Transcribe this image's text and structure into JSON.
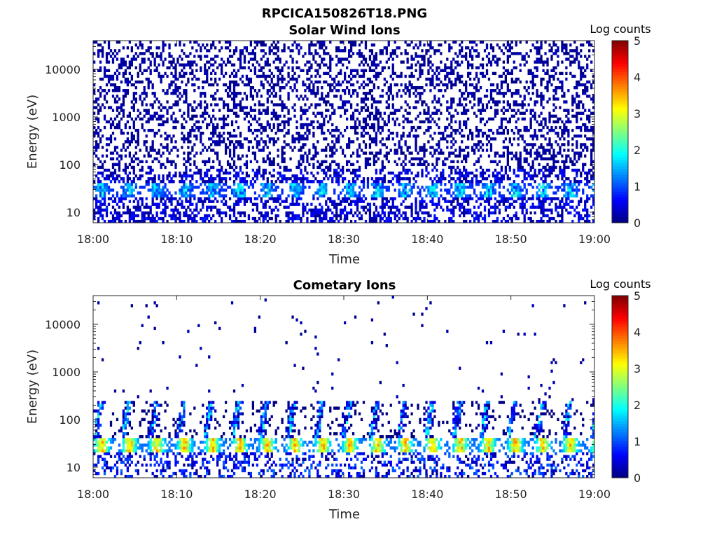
{
  "figure": {
    "title": "RPCICA150826T18.PNG"
  },
  "chart_data": [
    {
      "type": "heatmap",
      "title": "Solar Wind Ions",
      "xlabel": "Time",
      "ylabel": "Energy (eV)",
      "x_ticks": [
        "18:00",
        "18:10",
        "18:20",
        "18:30",
        "18:40",
        "18:50",
        "19:00"
      ],
      "xlim": [
        "18:00",
        "19:00"
      ],
      "y_scale": "log",
      "y_ticks": [
        10,
        100,
        1000,
        10000
      ],
      "y_tick_labels": [
        "10",
        "100",
        "1000",
        "10000"
      ],
      "ylim": [
        6,
        40000
      ],
      "colorbar": {
        "label": "Log counts",
        "range": [
          0,
          5
        ],
        "ticks": [
          "0",
          "1",
          "2",
          "3",
          "4",
          "5"
        ],
        "colormap": "jet"
      },
      "peak_bands": [
        {
          "energy_range_eV": [
            20,
            40
          ],
          "peak_log_counts": 2.3,
          "repeat_period_min": 3.3
        },
        {
          "energy_range_eV": [
            6,
            80
          ],
          "peak_log_counts": 0.8
        },
        {
          "energy_range_eV": [
            80,
            40000
          ],
          "peak_log_counts": 0.3,
          "note": "sparse background"
        }
      ]
    },
    {
      "type": "heatmap",
      "title": "Cometary Ions",
      "xlabel": "Time",
      "ylabel": "Energy (eV)",
      "x_ticks": [
        "18:00",
        "18:10",
        "18:20",
        "18:30",
        "18:40",
        "18:50",
        "19:00"
      ],
      "xlim": [
        "18:00",
        "19:00"
      ],
      "y_scale": "log",
      "y_ticks": [
        10,
        100,
        1000,
        10000
      ],
      "y_tick_labels": [
        "10",
        "100",
        "1000",
        "10000"
      ],
      "ylim": [
        6,
        40000
      ],
      "colorbar": {
        "label": "Log counts",
        "range": [
          0,
          5
        ],
        "ticks": [
          "0",
          "1",
          "2",
          "3",
          "4",
          "5"
        ],
        "colormap": "jet"
      },
      "peak_bands": [
        {
          "energy_range_eV": [
            20,
            40
          ],
          "peak_log_counts": 3.8,
          "repeat_period_min": 3.3
        },
        {
          "energy_range_eV": [
            40,
            250
          ],
          "peak_log_counts": 2.2
        },
        {
          "energy_range_eV": [
            250,
            40000
          ],
          "peak_log_counts": 0.3,
          "note": "sparse dots"
        }
      ]
    }
  ]
}
